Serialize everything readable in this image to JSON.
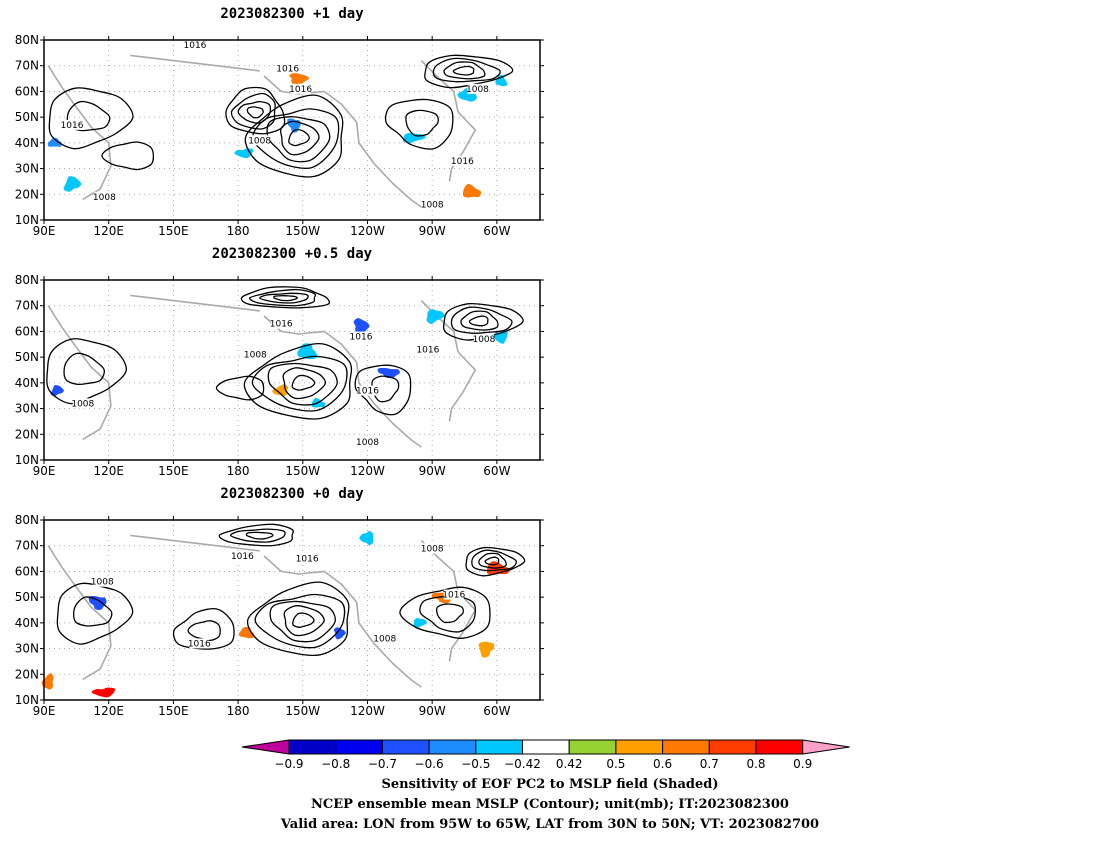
{
  "panels": [
    {
      "title": "2023082300  +1 day",
      "contour_labels": [
        {
          "text": "1016",
          "lon": 160,
          "lat": 78
        },
        {
          "text": "1016",
          "lon": -157,
          "lat": 69
        },
        {
          "text": "1016",
          "lon": -151,
          "lat": 61
        },
        {
          "text": "1008",
          "lon": -69,
          "lat": 61
        },
        {
          "text": "1016",
          "lon": 103,
          "lat": 47
        },
        {
          "text": "1008",
          "lon": -170,
          "lat": 41
        },
        {
          "text": "1016",
          "lon": -76,
          "lat": 33
        },
        {
          "text": "1008",
          "lon": 118,
          "lat": 19
        },
        {
          "text": "1008",
          "lon": -90,
          "lat": 16
        }
      ],
      "shaded_regions": [
        {
          "lon": 95,
          "lat": 40,
          "value": -0.6
        },
        {
          "lon": 103,
          "lat": 24,
          "value": -0.5
        },
        {
          "lon": -152,
          "lat": 65,
          "value": 0.6
        },
        {
          "lon": -154,
          "lat": 47,
          "value": -0.6
        },
        {
          "lon": -177,
          "lat": 36,
          "value": -0.5
        },
        {
          "lon": -73,
          "lat": 59,
          "value": -0.5
        },
        {
          "lon": -58,
          "lat": 64,
          "value": -0.5
        },
        {
          "lon": -72,
          "lat": 21,
          "value": 0.6
        },
        {
          "lon": -99,
          "lat": 42,
          "value": -0.5
        }
      ]
    },
    {
      "title": "2023082300  +0.5 day",
      "contour_labels": [
        {
          "text": "1016",
          "lon": -160,
          "lat": 63
        },
        {
          "text": "1016",
          "lon": -123,
          "lat": 58
        },
        {
          "text": "1008",
          "lon": -172,
          "lat": 51
        },
        {
          "text": "1008",
          "lon": -66,
          "lat": 57
        },
        {
          "text": "1016",
          "lon": -92,
          "lat": 53
        },
        {
          "text": "1016",
          "lon": -120,
          "lat": 37
        },
        {
          "text": "1008",
          "lon": 108,
          "lat": 32
        },
        {
          "text": "1008",
          "lon": -120,
          "lat": 17
        }
      ],
      "shaded_regions": [
        {
          "lon": 96,
          "lat": 37,
          "value": -0.7
        },
        {
          "lon": -123,
          "lat": 62,
          "value": -0.7
        },
        {
          "lon": -110,
          "lat": 44,
          "value": -0.7
        },
        {
          "lon": -58,
          "lat": 58,
          "value": -0.5
        },
        {
          "lon": -160,
          "lat": 37,
          "value": 0.5
        },
        {
          "lon": -148,
          "lat": 52,
          "value": -0.5
        },
        {
          "lon": -143,
          "lat": 32,
          "value": -0.5
        },
        {
          "lon": -89,
          "lat": 66,
          "value": -0.5
        }
      ]
    },
    {
      "title": "2023082300  +0 day",
      "contour_labels": [
        {
          "text": "1016",
          "lon": -178,
          "lat": 66
        },
        {
          "text": "1016",
          "lon": -148,
          "lat": 65
        },
        {
          "text": "1008",
          "lon": -90,
          "lat": 69
        },
        {
          "text": "1008",
          "lon": 117,
          "lat": 56
        },
        {
          "text": "1016",
          "lon": -80,
          "lat": 51
        },
        {
          "text": "1016",
          "lon": 162,
          "lat": 32
        },
        {
          "text": "1008",
          "lon": -112,
          "lat": 34
        }
      ],
      "shaded_regions": [
        {
          "lon": -133,
          "lat": 36,
          "value": -0.7
        },
        {
          "lon": 115,
          "lat": 48,
          "value": -0.7
        },
        {
          "lon": 118,
          "lat": 13,
          "value": 0.8
        },
        {
          "lon": 92,
          "lat": 17,
          "value": 0.6
        },
        {
          "lon": -176,
          "lat": 36,
          "value": 0.6
        },
        {
          "lon": -60,
          "lat": 61,
          "value": 0.7
        },
        {
          "lon": -96,
          "lat": 40,
          "value": -0.5
        },
        {
          "lon": -65,
          "lat": 30,
          "value": 0.5
        },
        {
          "lon": -85,
          "lat": 50,
          "value": 0.6
        },
        {
          "lon": -120,
          "lat": 73,
          "value": -0.5
        }
      ]
    }
  ],
  "axes": {
    "lat_ticks": [
      "80N",
      "70N",
      "60N",
      "50N",
      "40N",
      "30N",
      "20N",
      "10N"
    ],
    "lon_ticks": [
      "90E",
      "120E",
      "150E",
      "180",
      "150W",
      "120W",
      "90W",
      "60W"
    ],
    "lon_range": [
      "90E",
      "40W"
    ],
    "lat_range": [
      "10N",
      "80N"
    ]
  },
  "colorbar": {
    "levels": [
      "-0.9",
      "-0.8",
      "-0.7",
      "-0.6",
      "-0.5",
      "-0.42",
      "0.42",
      "0.5",
      "0.6",
      "0.7",
      "0.8",
      "0.9"
    ],
    "colors": [
      "#c0009a",
      "#0000c8",
      "#0000f0",
      "#1e50ff",
      "#1e8cff",
      "#00c8ff",
      "#ffffff",
      "#96d232",
      "#ffa000",
      "#ff7800",
      "#ff3c00",
      "#ff0000",
      "#ffa0c8"
    ]
  },
  "caption": {
    "line1": "Sensitivity of EOF PC2 to MSLP field (Shaded)",
    "line2": "NCEP ensemble mean MSLP (Contour); unit(mb); IT:2023082300",
    "line3": "Valid area: LON from 95W to 65W, LAT from 30N to 50N; VT: 2023082700"
  }
}
